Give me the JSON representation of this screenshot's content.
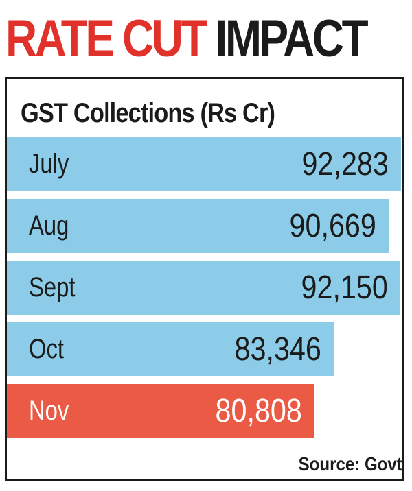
{
  "headline": {
    "part1": "RATE CUT ",
    "part2": "IMPACT"
  },
  "source": "Source: Govt",
  "colors": {
    "headline_red": "#e0322a",
    "headline_dark": "#1b1b1b",
    "bar_default": "#8ccce8",
    "bar_highlight": "#ea5a45"
  },
  "chart_data": {
    "type": "bar",
    "orientation": "horizontal",
    "title": "GST Collections (Rs Cr)",
    "categories": [
      "July",
      "Aug",
      "Sept",
      "Oct",
      "Nov"
    ],
    "values": [
      92283,
      90669,
      92150,
      83346,
      80808
    ],
    "value_labels": [
      "92,283",
      "90,669",
      "92,150",
      "83,346",
      "80,808"
    ],
    "highlight": "Nov",
    "grid": false,
    "axes_shown": false
  }
}
